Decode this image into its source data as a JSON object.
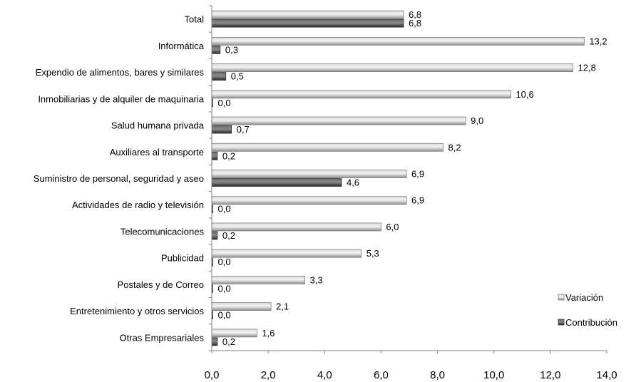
{
  "chart_data": {
    "type": "bar",
    "orientation": "horizontal",
    "categories": [
      "Total",
      "Informática",
      "Expendio de alimentos, bares y similares",
      "Inmobiliarias y de alquiler de maquinaria",
      "Salud humana privada",
      "Auxiliares al transporte",
      "Suministro de personal, seguridad y aseo",
      "Actividades de radio y televisión",
      "Telecomunicaciones",
      "Publicidad",
      "Postales y de Correo",
      "Entretenimiento y otros servicios",
      "Otras Empresariales"
    ],
    "series": [
      {
        "name": "Variación",
        "color": "#b3b3b3",
        "values": [
          6.8,
          13.2,
          12.8,
          10.6,
          9.0,
          8.2,
          6.9,
          6.9,
          6.0,
          5.3,
          3.3,
          2.1,
          1.6
        ],
        "labels": [
          "6,8",
          "13,2",
          "12,8",
          "10,6",
          "9,0",
          "8,2",
          "6,9",
          "6,9",
          "6,0",
          "5,3",
          "3,3",
          "2,1",
          "1,6"
        ]
      },
      {
        "name": "Contribución",
        "color": "#4d4d4d",
        "values": [
          6.8,
          0.3,
          0.5,
          0.0,
          0.7,
          0.2,
          4.6,
          0.0,
          0.2,
          0.0,
          0.0,
          0.0,
          0.2
        ],
        "labels": [
          "6,8",
          "0,3",
          "0,5",
          "0,0",
          "0,7",
          "0,2",
          "4,6",
          "0,0",
          "0,2",
          "0,0",
          "0,0",
          "0,0",
          "0,2"
        ]
      }
    ],
    "xlim": [
      0,
      14
    ],
    "xticks": [
      0,
      2,
      4,
      6,
      8,
      10,
      12,
      14
    ],
    "xtick_labels": [
      "0,0",
      "2,0",
      "4,0",
      "6,0",
      "8,0",
      "10,0",
      "12,0",
      "14,0"
    ],
    "grid": false,
    "legend_position": "right"
  }
}
